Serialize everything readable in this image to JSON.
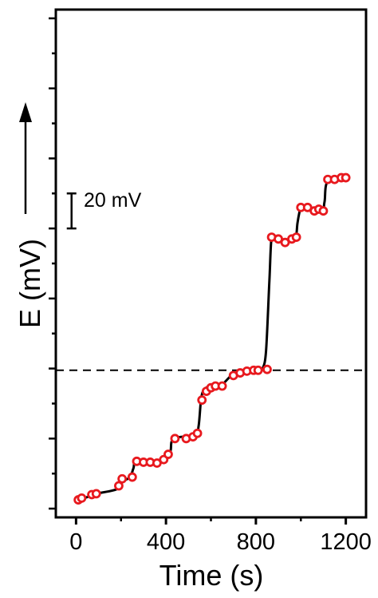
{
  "chart_data": {
    "type": "line",
    "xlabel": "Time (s)",
    "ylabel": "E (mV)",
    "xlim": [
      -90,
      1290
    ],
    "ylim": [
      -80,
      210
    ],
    "x_ticks": [
      0,
      400,
      800,
      1200
    ],
    "x_tick_labels": [
      "0",
      "400",
      "800",
      "1200"
    ],
    "y_tick_values": [
      -75,
      -55,
      -35,
      -15,
      5,
      25,
      45,
      65,
      85,
      105,
      125,
      145,
      165,
      185,
      205
    ],
    "scale_bar": {
      "label": "20 mV",
      "value_mV": 20,
      "from": 85,
      "to": 105,
      "at_x": -20
    },
    "reference_line": {
      "y": 4,
      "style": "dashed"
    },
    "series": [
      {
        "style": "points",
        "marker": "open-circle",
        "color": "#e8191e",
        "x": [
          10,
          25,
          70,
          90,
          190,
          205,
          250,
          270,
          300,
          330,
          360,
          390,
          410,
          440,
          490,
          520,
          540,
          560,
          580,
          600,
          620,
          650,
          700,
          730,
          760,
          790,
          810,
          850,
          870,
          900,
          930,
          960,
          980,
          1000,
          1030,
          1060,
          1080,
          1100,
          1120,
          1150,
          1180,
          1200
        ],
        "y": [
          -70,
          -69,
          -67,
          -66.5,
          -62,
          -58,
          -57,
          -48,
          -48.5,
          -48.5,
          -49,
          -47,
          -44,
          -35,
          -35,
          -34,
          -32,
          -13,
          -8,
          -6,
          -5,
          -5,
          1,
          2.5,
          3.5,
          4,
          4,
          4.5,
          80,
          79,
          77,
          79,
          80,
          97,
          97,
          95,
          96,
          95,
          113,
          113,
          114,
          114
        ]
      },
      {
        "style": "line",
        "color": "#000000",
        "x": [
          10,
          60,
          90,
          180,
          200,
          240,
          255,
          270,
          360,
          385,
          400,
          420,
          435,
          530,
          545,
          555,
          565,
          595,
          645,
          660,
          690,
          700,
          800,
          815,
          830,
          845,
          860,
          870,
          890,
          960,
          978,
          985,
          995,
          1000,
          1090,
          1105,
          1120,
          1200
        ],
        "y": [
          -70,
          -68,
          -66.5,
          -64,
          -60,
          -57,
          -52,
          -48,
          -48.5,
          -47,
          -45,
          -42,
          -35,
          -33,
          -28,
          -14,
          -8,
          -5,
          -5,
          -3,
          1,
          1.5,
          3.5,
          4,
          5,
          15,
          55,
          80,
          78,
          79,
          80,
          88,
          95,
          97,
          95,
          100,
          112,
          114
        ]
      }
    ]
  }
}
